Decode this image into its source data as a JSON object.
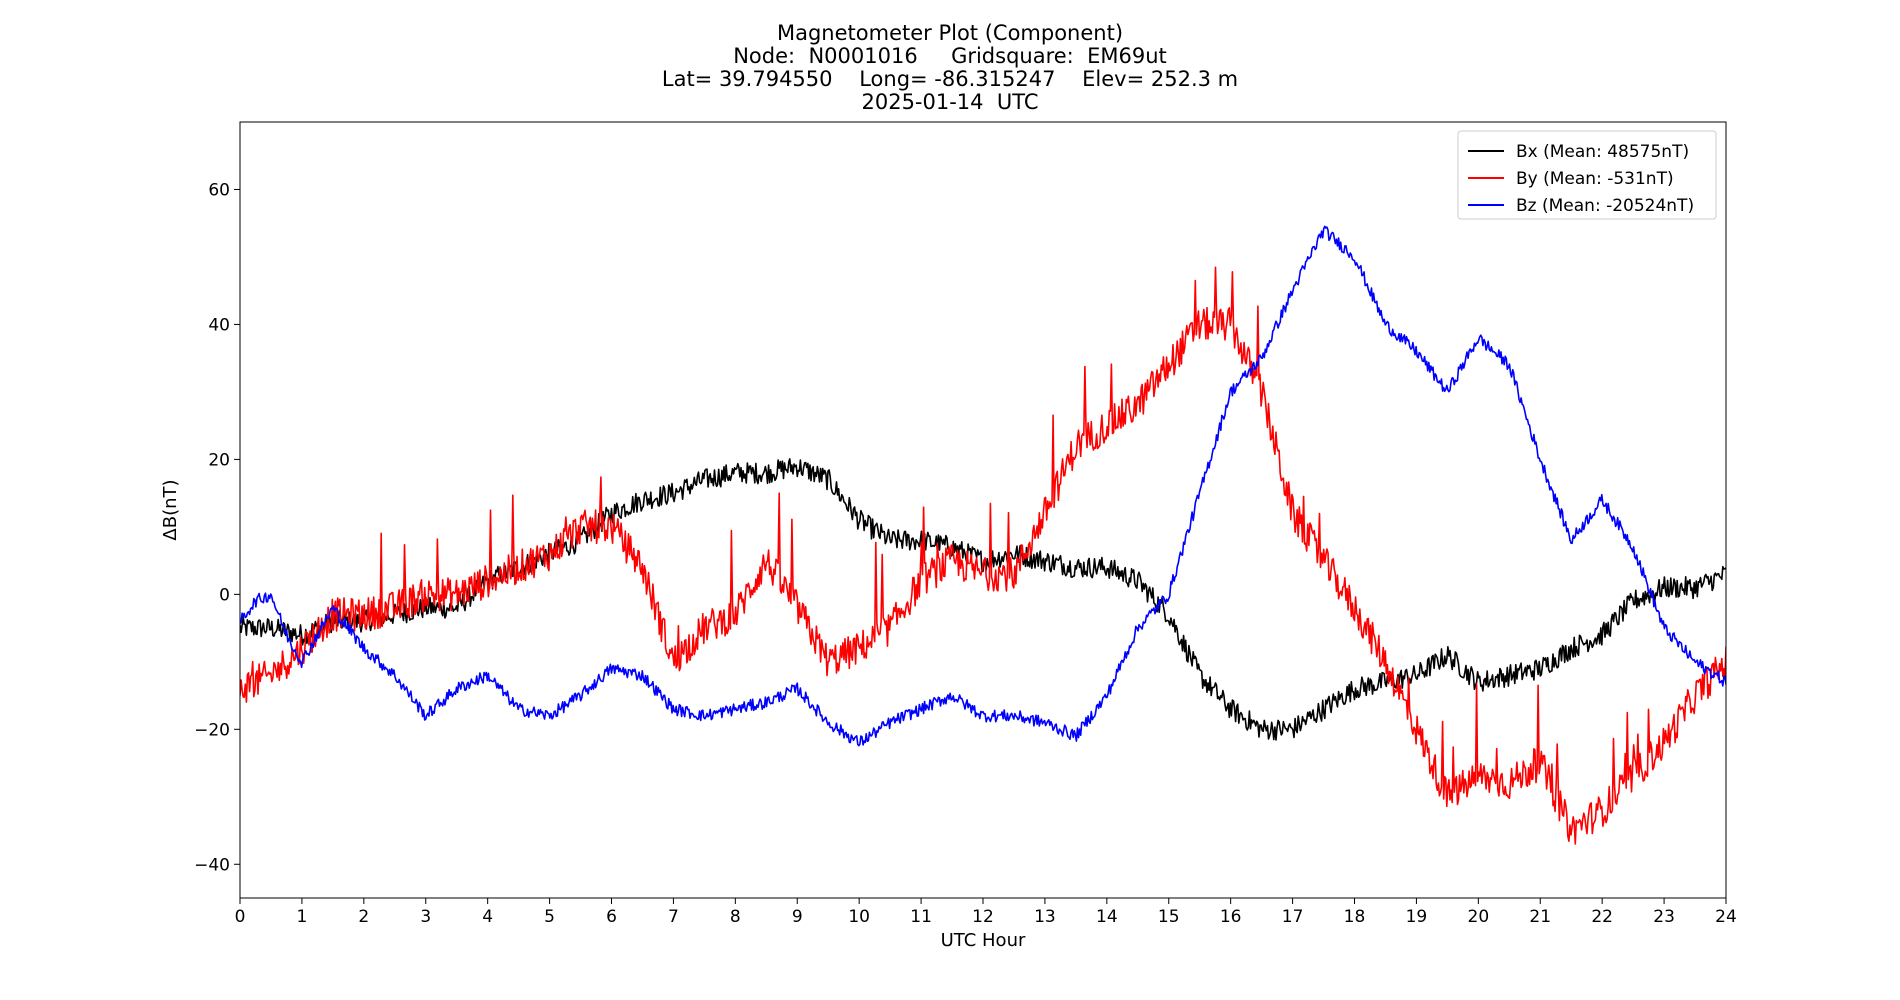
{
  "chart_data": {
    "type": "line",
    "title_lines": [
      "Magnetometer Plot (Component)",
      "Node:  N0001016     Gridsquare:  EM69ut",
      "Lat= 39.794550    Long= -86.315247    Elev= 252.3 m",
      "2025-01-14  UTC"
    ],
    "xlabel": "UTC Hour",
    "ylabel": "ΔB(nT)",
    "xlim": [
      0,
      24
    ],
    "ylim": [
      -45,
      70
    ],
    "xticks": [
      0,
      1,
      2,
      3,
      4,
      5,
      6,
      7,
      8,
      9,
      10,
      11,
      12,
      13,
      14,
      15,
      16,
      17,
      18,
      19,
      20,
      21,
      22,
      23,
      24
    ],
    "yticks": [
      -40,
      -20,
      0,
      20,
      40,
      60
    ],
    "grid": false,
    "legend_position": "top-right",
    "series": [
      {
        "name": "Bx (Mean: 48575nT)",
        "color": "#000000",
        "noise": 1.6,
        "x": [
          0,
          0.5,
          1,
          1.5,
          2,
          2.5,
          3,
          3.5,
          4,
          4.5,
          5,
          5.5,
          6,
          6.5,
          7,
          7.5,
          8,
          8.5,
          9,
          9.5,
          10,
          10.5,
          11,
          11.5,
          12,
          12.5,
          13,
          13.5,
          14,
          14.5,
          15,
          15.5,
          16,
          16.5,
          17,
          17.5,
          18,
          18.5,
          19,
          19.5,
          20,
          20.5,
          21,
          21.5,
          22,
          22.5,
          23,
          23.5,
          24
        ],
        "y": [
          -5,
          -5,
          -6,
          -4,
          -4,
          -3,
          -2,
          -2,
          2,
          4,
          6,
          8,
          12,
          14,
          15,
          17,
          18,
          18,
          19,
          17,
          11,
          8,
          8,
          7,
          5,
          6,
          5,
          4,
          4,
          2,
          -3,
          -12,
          -17,
          -20,
          -20,
          -17,
          -14,
          -13,
          -12,
          -9,
          -13,
          -12,
          -11,
          -8,
          -6,
          -1,
          1,
          1,
          3
        ]
      },
      {
        "name": "By (Mean: -531nT)",
        "color": "#ff0000",
        "noise": 2.5,
        "x": [
          0,
          0.5,
          1,
          1.5,
          2,
          2.5,
          3,
          3.5,
          4,
          4.5,
          5,
          5.5,
          6,
          6.5,
          7,
          7.5,
          8,
          8.5,
          9,
          9.5,
          10,
          10.5,
          11,
          11.5,
          12,
          12.5,
          13,
          13.5,
          14,
          14.5,
          15,
          15.5,
          16,
          16.5,
          17,
          17.5,
          18,
          18.5,
          19,
          19.5,
          20,
          20.5,
          21,
          21.5,
          22,
          22.5,
          23,
          23.5,
          24
        ],
        "y": [
          -14,
          -12,
          -8,
          -3,
          -3,
          -2,
          0,
          0,
          2,
          4,
          6,
          10,
          10,
          4,
          -10,
          -5,
          -3,
          5,
          -2,
          -10,
          -8,
          -5,
          2,
          5,
          3,
          3,
          12,
          22,
          25,
          28,
          34,
          40,
          40,
          30,
          12,
          5,
          -2,
          -10,
          -20,
          -30,
          -27,
          -28,
          -25,
          -35,
          -32,
          -27,
          -22,
          -15,
          -10
        ]
      },
      {
        "name": "Bz (Mean: -20524nT)",
        "color": "#0000ff",
        "noise": 0.9,
        "x": [
          0,
          0.25,
          0.5,
          0.75,
          1,
          1.5,
          2,
          2.5,
          3,
          3.5,
          4,
          4.5,
          5,
          5.5,
          6,
          6.5,
          7,
          7.5,
          8,
          8.5,
          9,
          9.5,
          10,
          10.5,
          11,
          11.5,
          12,
          12.5,
          13,
          13.5,
          14,
          14.5,
          15,
          15.5,
          16,
          16.5,
          17,
          17.5,
          18,
          18.5,
          19,
          19.5,
          20,
          20.5,
          21,
          21.5,
          22,
          22.5,
          23,
          23.5,
          24
        ],
        "y": [
          -4,
          -1,
          0,
          -6,
          -10,
          -2,
          -8,
          -12,
          -18,
          -14,
          -12,
          -17,
          -18,
          -15,
          -11,
          -12,
          -17,
          -18,
          -17,
          -16,
          -14,
          -19,
          -22,
          -19,
          -17,
          -15,
          -18,
          -18,
          -19,
          -21,
          -15,
          -5,
          0,
          15,
          30,
          35,
          45,
          54,
          50,
          40,
          36,
          30,
          38,
          34,
          20,
          8,
          14,
          7,
          -5,
          -10,
          -13
        ]
      }
    ]
  }
}
